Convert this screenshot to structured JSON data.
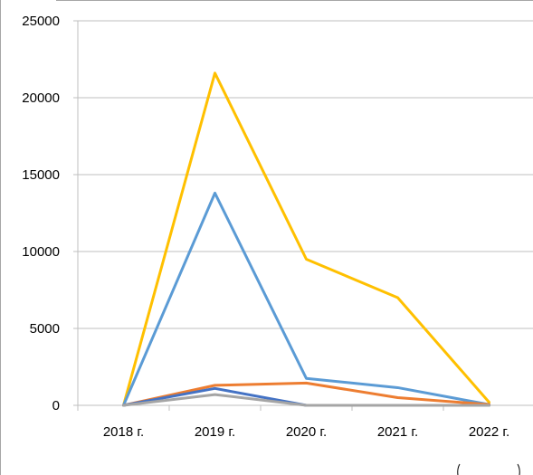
{
  "chart_data": {
    "type": "line",
    "title": "",
    "xlabel": "",
    "ylabel": "",
    "categories": [
      "2018 г.",
      "2019 г.",
      "2020 г.",
      "2021 г.",
      "2022 г."
    ],
    "ylim": [
      0,
      25000
    ],
    "yticks": [
      0,
      5000,
      10000,
      15000,
      20000,
      25000
    ],
    "y_tick_labels": [
      "0",
      "5000",
      "10000",
      "15000",
      "20000",
      "25000"
    ],
    "grid": true,
    "legend": "none",
    "series": [
      {
        "color": "#FFC000",
        "values": [
          0,
          21600,
          9500,
          7000,
          200
        ]
      },
      {
        "color": "#5B9BD5",
        "values": [
          0,
          13800,
          1750,
          1150,
          50
        ]
      },
      {
        "color": "#ED7D31",
        "values": [
          0,
          1300,
          1450,
          500,
          50
        ]
      },
      {
        "color": "#4472C4",
        "values": [
          0,
          1100,
          0,
          0,
          0
        ]
      },
      {
        "color": "#A5A5A5",
        "values": [
          0,
          700,
          0,
          0,
          0
        ]
      }
    ]
  }
}
